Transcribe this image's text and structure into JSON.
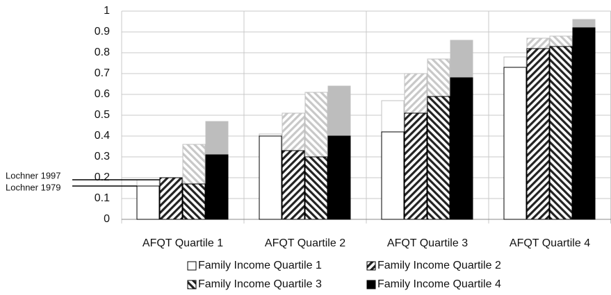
{
  "chart_data": {
    "type": "overlay-bar",
    "categories": [
      "AFQT Quartile 1",
      "AFQT Quartile 2",
      "AFQT Quartile 3",
      "AFQT Quartile 4"
    ],
    "series": [
      {
        "name": "Family Income Quartile 1",
        "color": "#ffffff",
        "color_1997": "#ffffff",
        "hatch": "none",
        "values": [
          0.16,
          0.4,
          0.42,
          0.73
        ],
        "values_1997": [
          0.19,
          0.41,
          0.57,
          0.78
        ]
      },
      {
        "name": "Family Income Quartile 2",
        "color": "#222222",
        "color_1997": "#c8c8c8",
        "hatch": "/",
        "values": [
          0.2,
          0.33,
          0.51,
          0.82
        ],
        "values_1997": [
          0.2,
          0.51,
          0.7,
          0.87
        ]
      },
      {
        "name": "Family Income Quartile 3",
        "color": "#222222",
        "color_1997": "#c8c8c8",
        "hatch": "\\",
        "values": [
          0.17,
          0.3,
          0.59,
          0.83
        ],
        "values_1997": [
          0.36,
          0.61,
          0.77,
          0.88
        ]
      },
      {
        "name": "Family Income Quartile 4",
        "color": "#000000",
        "color_1997": "#bdbdbd",
        "hatch": "none",
        "values": [
          0.31,
          0.4,
          0.68,
          0.92
        ],
        "values_1997": [
          0.47,
          0.64,
          0.86,
          0.96
        ]
      }
    ],
    "annotations": [
      {
        "text": "Lochner 1997"
      },
      {
        "text": "Lochner 1979"
      }
    ],
    "ylim": [
      0,
      1
    ],
    "yticks": [
      0,
      0.1,
      0.2,
      0.3,
      0.4,
      0.5,
      0.6,
      0.7,
      0.8,
      0.9,
      1
    ],
    "grid": true
  }
}
